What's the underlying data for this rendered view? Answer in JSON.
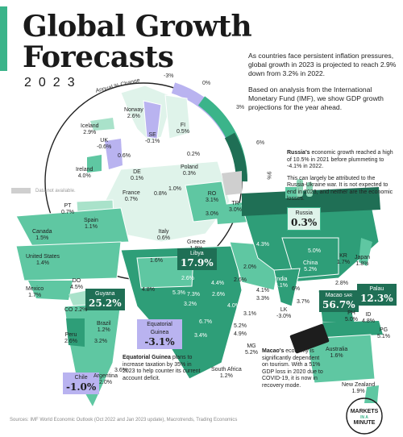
{
  "header": {
    "title_line1": "Global Growth",
    "title_line2": "Forecasts",
    "year": "2023"
  },
  "intro": {
    "p1": "As countries face persistent inflation pressures, global growth in 2023 is projected to reach 2.9% down from 3.2% in 2022.",
    "p2": "Based on analysis from the International Monetary Fund (IMF), we show GDP growth projections for the year ahead."
  },
  "legend": {
    "dial_title": "Annual % Change",
    "ticks": [
      "-3%",
      "0%",
      "3%",
      "6%",
      "9%"
    ],
    "not_available": "Data not available."
  },
  "colors": {
    "accent": "#3bb48a",
    "negative": "#b9b3f0",
    "low": "#dff3ea",
    "mid_low": "#a9e2ca",
    "mid": "#5fc7a2",
    "mid_high": "#2e9e78",
    "high": "#1f6f55",
    "na": "#cfcfcf"
  },
  "countries": {
    "norway": {
      "name": "Norway",
      "value": "2.6%"
    },
    "iceland": {
      "name": "Iceland",
      "value": "2.9%"
    },
    "se": {
      "name": "SE",
      "value": "-0.1%"
    },
    "fi": {
      "name": "FI",
      "value": "0.5%"
    },
    "uk": {
      "name": "UK",
      "value": "-0.6%"
    },
    "ireland": {
      "name": "Ireland",
      "value": "4.0%"
    },
    "de": {
      "name": "DE",
      "value": "0.1%"
    },
    "poland": {
      "name": "Poland",
      "value": "0.3%"
    },
    "france": {
      "name": "France",
      "value": "0.7%"
    },
    "pt": {
      "name": "PT",
      "value": "0.7%"
    },
    "spain": {
      "name": "Spain",
      "value": "1.1%"
    },
    "italy": {
      "name": "Italy",
      "value": "0.6%"
    },
    "greece": {
      "name": "Greece",
      "value": "1.8%"
    },
    "ro": {
      "name": "RO",
      "value": "3.1%"
    },
    "tr": {
      "name": "TR",
      "value": "3.0%"
    },
    "russia": {
      "name": "Russia",
      "value": "0.3%"
    },
    "canada": {
      "name": "Canada",
      "value": "1.5%"
    },
    "united_states": {
      "name": "United States",
      "value": "1.4%"
    },
    "mexico": {
      "name": "Mexico",
      "value": "1.7%"
    },
    "do": {
      "name": "DO",
      "value": "4.5%"
    },
    "guyana": {
      "name": "Guyana",
      "value": "25.2%"
    },
    "co": {
      "name": "CO",
      "value": "2.2%"
    },
    "peru": {
      "name": "Peru",
      "value": "2.6%"
    },
    "brazil": {
      "name": "Brazil",
      "value": "1.2%"
    },
    "chile": {
      "name": "Chile",
      "value": "-1.0%"
    },
    "argentina": {
      "name": "Argentina",
      "value": "2.0%"
    },
    "libya": {
      "name": "Libya",
      "value": "17.9%"
    },
    "equatorial_guinea": {
      "name": "Equatorial Guinea",
      "value": "-3.1%"
    },
    "south_africa": {
      "name": "South Africa",
      "value": "1.2%"
    },
    "mg": {
      "name": "MG",
      "value": "5.2%"
    },
    "china": {
      "name": "China",
      "value": "5.2%"
    },
    "kr": {
      "name": "KR",
      "value": "1.7%"
    },
    "japan": {
      "name": "Japan",
      "value": "1.8%"
    },
    "india": {
      "name": "India",
      "value": "6.1%"
    },
    "lk": {
      "name": "LK",
      "value": "-3.0%"
    },
    "macao": {
      "name": "Macao",
      "sub": "SAR",
      "value": "56.7%"
    },
    "palau": {
      "name": "Palau",
      "value": "12.3%"
    },
    "ph": {
      "name": "PH",
      "value": "5.0%"
    },
    "id": {
      "name": "ID",
      "value": "4.8%"
    },
    "pg": {
      "name": "PG",
      "value": "5.1%"
    },
    "australia": {
      "name": "Australia",
      "value": "1.6%"
    },
    "new_zealand": {
      "name": "New Zealand",
      "value": "1.9%"
    }
  },
  "misc_values": {
    "eu_06": "0.6%",
    "eu_02": "0.2%",
    "eu_08": "0.8%",
    "eu_10": "1.0%",
    "eu_30": "3.0%",
    "mena_16": "1.6%",
    "me_20": "2.0%",
    "ca_43": "4.3%",
    "as_50": "5.0%",
    "me_26": "2.6%",
    "me_41": "4.1%",
    "me_33": "3.3%",
    "sa_28": "2.8%",
    "sa_60": "6%",
    "sea_37": "3.7%",
    "af_48": "4.8%",
    "af_26": "2.6%",
    "af_44": "4.4%",
    "af_53": "5.3%",
    "af_73": "7.3%",
    "af_32": "3.2%",
    "af_26b": "2.6%",
    "af_40": "4.0%",
    "af_31": "3.1%",
    "af_67": "6.7%",
    "af_52": "5.2%",
    "af_49": "4.9%",
    "af_34": "3.4%",
    "sa_32": "3.2%",
    "sa_36": "3.6%"
  },
  "notes": {
    "russia_bold": "Russia's",
    "russia_text": " economic growth reached a high of 10.5% in 2021 before plummeting to -4.1% in 2022.",
    "russia_text2": "This can largely be attributed to the Russia-Ukraine war. It is not expected to end in 2023, and neither are the economic losses.",
    "eq_bold": "Equatorial Guinea",
    "eq_text": " plans to increase taxation by 35% in 2023 to help counter its current account deficit.",
    "macao_bold": "Macao's",
    "macao_text": " economy is significantly dependent on tourism. With a 51% GDP loss in 2020 due to COVID-19, it is now in recovery mode."
  },
  "footer": {
    "sources": "Sources: IMF World Economic Outlook (Oct 2022 and Jan 2023 update), Macrotrends, Trading Economics",
    "brand_line1": "MARKETS",
    "brand_line2": "IN A",
    "brand_line3": "MINUTE"
  }
}
